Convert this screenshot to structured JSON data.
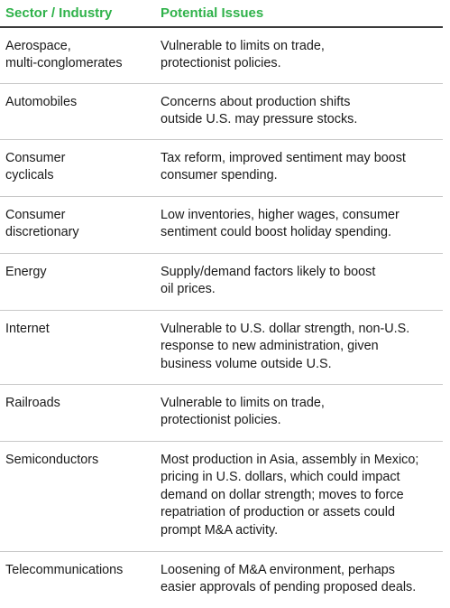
{
  "header": {
    "col1": "Sector / Industry",
    "col2": "Potential Issues"
  },
  "rows": [
    {
      "sector": "Aerospace,\nmulti-conglomerates",
      "issues": "Vulnerable to limits on trade,\nprotectionist policies."
    },
    {
      "sector": "Automobiles",
      "issues": "Concerns about production shifts\noutside U.S. may pressure stocks."
    },
    {
      "sector": "Consumer\ncyclicals",
      "issues": "Tax reform, improved sentiment may boost\nconsumer spending."
    },
    {
      "sector": "Consumer\ndiscretionary",
      "issues": "Low inventories, higher wages, consumer\nsentiment could boost holiday spending."
    },
    {
      "sector": "Energy",
      "issues": "Supply/demand factors likely to boost\noil prices."
    },
    {
      "sector": "Internet",
      "issues": "Vulnerable to U.S. dollar strength, non-U.S.\nresponse to new administration, given\nbusiness volume outside U.S."
    },
    {
      "sector": "Railroads",
      "issues": "Vulnerable to limits on trade,\nprotectionist policies."
    },
    {
      "sector": "Semiconductors",
      "issues": "Most production in Asia, assembly in Mexico;\npricing in U.S. dollars, which could impact\ndemand on dollar strength; moves to force\nrepatriation of production or assets could\nprompt M&A activity."
    },
    {
      "sector": "Telecommunications",
      "issues": "Loosening of M&A environment, perhaps\neasier approvals of pending proposed deals."
    }
  ]
}
